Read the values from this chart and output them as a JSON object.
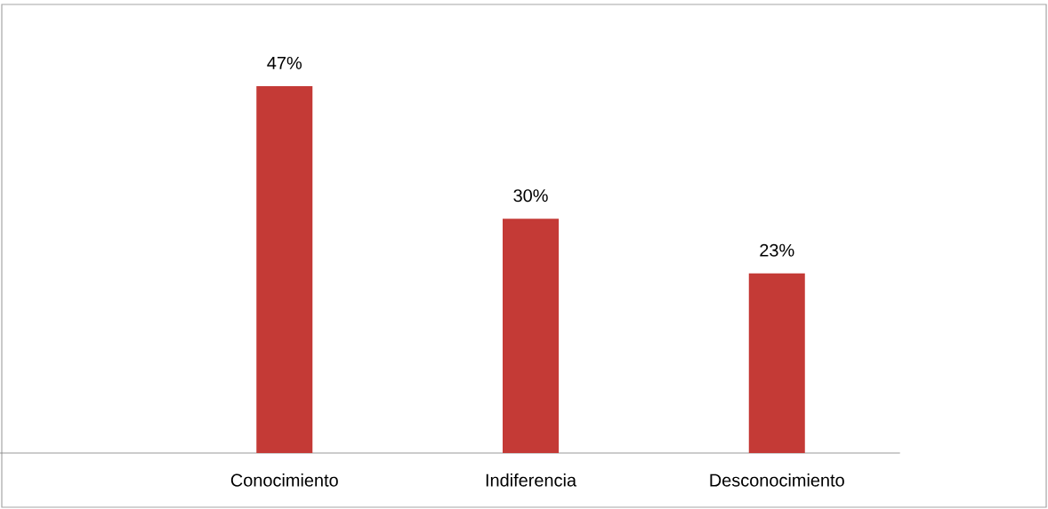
{
  "chart_data": {
    "type": "bar",
    "categories": [
      null,
      "Conocimiento",
      "Indiferencia",
      "Desconocimiento"
    ],
    "values": [
      null,
      47,
      30,
      23
    ],
    "value_labels": [
      null,
      "47%",
      "30%",
      "23%"
    ],
    "color": "#c43a36",
    "tick_labels": "x"
  }
}
